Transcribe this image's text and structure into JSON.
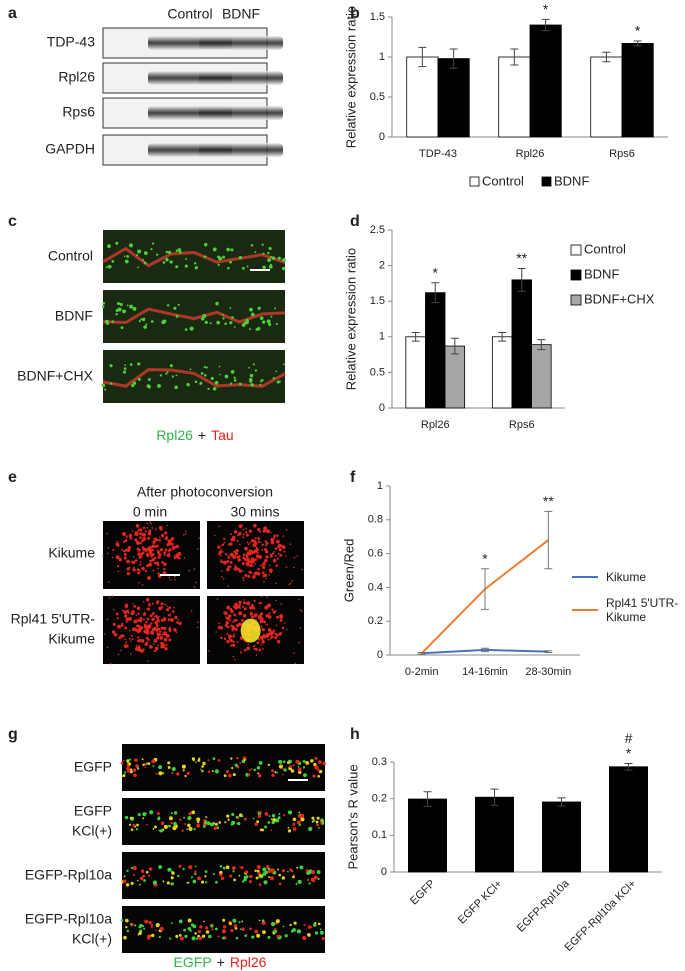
{
  "panels": {
    "a": {
      "label": "a",
      "columns": [
        "Control",
        "BDNF"
      ],
      "rows": [
        "TDP-43",
        "Rpl26",
        "Rps6",
        "GAPDH"
      ]
    },
    "c": {
      "label": "c",
      "rows": [
        [
          "Control"
        ],
        [
          "BDNF"
        ],
        [
          "BDNF+CHX"
        ]
      ],
      "caption": [
        {
          "text": "Rpl26",
          "color": "#33b24a"
        },
        {
          "text": "+",
          "color": "#222222"
        },
        {
          "text": "Tau",
          "color": "#e3241b"
        }
      ]
    },
    "e": {
      "label": "e",
      "title": "After photoconversion",
      "columns": [
        "0 min",
        "30 mins"
      ],
      "rows": [
        [
          "Kikume"
        ],
        [
          "Rpl41 5'UTR-",
          "Kikume"
        ]
      ]
    },
    "g": {
      "label": "g",
      "rows": [
        [
          "EGFP"
        ],
        [
          "EGFP",
          "KCl(+)"
        ],
        [
          "EGFP-Rpl10a"
        ],
        [
          "EGFP-Rpl10a",
          "KCl(+)"
        ]
      ],
      "caption": [
        {
          "text": "EGFP",
          "color": "#33b24a"
        },
        {
          "text": "+",
          "color": "#222222"
        },
        {
          "text": "Rpl26",
          "color": "#e3241b"
        }
      ]
    }
  },
  "chart_data": [
    {
      "type": "bar",
      "label": "b",
      "ylabel": "Relative expression ratio",
      "categories": [
        "TDP-43",
        "Rpl26",
        "Rps6"
      ],
      "series": [
        {
          "name": "Control",
          "color": "#ffffff",
          "values": [
            1,
            1,
            1
          ],
          "errors": [
            0.12,
            0.1,
            0.06
          ]
        },
        {
          "name": "BDNF",
          "color": "#000000",
          "values": [
            0.98,
            1.4,
            1.17
          ],
          "errors": [
            0.12,
            0.07,
            0.03
          ],
          "annotations": [
            null,
            [
              "*"
            ],
            [
              "*"
            ]
          ]
        }
      ],
      "ylim": [
        0,
        1.5
      ],
      "yticks": [
        0,
        0.5,
        1,
        1.5
      ],
      "legend": "bottom"
    },
    {
      "type": "bar",
      "label": "d",
      "ylabel": "Relative expression ratio",
      "categories": [
        "Rpl26",
        "Rps6"
      ],
      "series": [
        {
          "name": "Control",
          "color": "#ffffff",
          "values": [
            1,
            1
          ],
          "errors": [
            0.06,
            0.06
          ]
        },
        {
          "name": "BDNF",
          "color": "#000000",
          "values": [
            1.62,
            1.8
          ],
          "errors": [
            0.14,
            0.16
          ],
          "annotations": [
            [
              "*"
            ],
            [
              "**"
            ]
          ]
        },
        {
          "name": "BDNF+CHX",
          "color": "#a6a6a6",
          "values": [
            0.87,
            0.89
          ],
          "errors": [
            0.11,
            0.07
          ]
        }
      ],
      "ylim": [
        0,
        2.5
      ],
      "yticks": [
        0,
        0.5,
        1,
        1.5,
        2,
        2.5
      ],
      "legend": "top-right"
    },
    {
      "type": "line",
      "label": "f",
      "ylabel": "Green/Red",
      "categories": [
        "0-2min",
        "14-16min",
        "28-30min"
      ],
      "series": [
        {
          "name": "Kikume",
          "color": "#4472c4",
          "values": [
            0.01,
            0.03,
            0.02
          ],
          "errors": [
            0.005,
            0.01,
            0.005
          ]
        },
        {
          "name": "Rpl41 5'UTR-Kikume",
          "color": "#ed7d31",
          "values": [
            0.01,
            0.39,
            0.68
          ],
          "errors": [
            0.005,
            0.12,
            0.17
          ],
          "annotations": [
            null,
            [
              "*"
            ],
            [
              "**"
            ]
          ]
        }
      ],
      "ylim": [
        0,
        1
      ],
      "yticks": [
        0,
        0.2,
        0.4,
        0.6,
        0.8,
        1
      ],
      "legend": "right"
    },
    {
      "type": "bar",
      "label": "h",
      "ylabel": "Pearson's R value",
      "categories": [
        "EGFP",
        "EGFP KCl+",
        "EGFP-Rpl10a",
        "EGFP-Rpl10a KCl+"
      ],
      "series": [
        {
          "color": "#000000",
          "values": [
            0.199,
            0.204,
            0.191,
            0.287
          ],
          "errors": [
            0.02,
            0.022,
            0.011,
            0.009
          ],
          "annotations": [
            null,
            null,
            null,
            [
              "#",
              "*"
            ]
          ]
        }
      ],
      "ylim": [
        0,
        0.3
      ],
      "yticks": [
        0,
        0.1,
        0.2,
        0.3
      ],
      "rotated_labels": true
    }
  ]
}
